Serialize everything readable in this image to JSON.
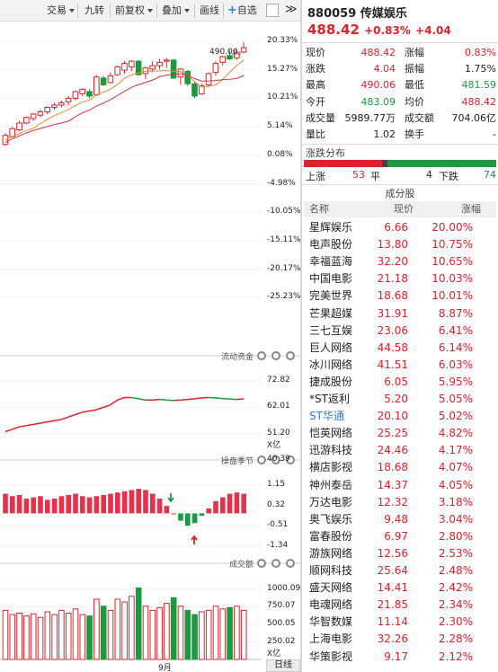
{
  "toolbar": {
    "trade": "交易",
    "nine": "九转",
    "adjust": "前复权",
    "overlay": "叠加",
    "draw": "画线",
    "watch": "自选",
    "more": "≫"
  },
  "kline": {
    "y_labels": [
      "20.33%",
      "15.27%",
      "10.21%",
      "5.14%",
      "0.08%",
      "-4.98%",
      "-10.05%",
      "-15.11%",
      "-20.17%",
      "-25.23%"
    ],
    "peak_label": "490.06",
    "candles": [
      {
        "o": 2.0,
        "c": 3.6,
        "h": 4.0,
        "l": 1.8
      },
      {
        "o": 3.4,
        "c": 4.8,
        "h": 5.1,
        "l": 3.2
      },
      {
        "o": 4.6,
        "c": 5.8,
        "h": 6.2,
        "l": 4.4
      },
      {
        "o": 5.8,
        "c": 6.8,
        "h": 7.0,
        "l": 5.6
      },
      {
        "o": 6.6,
        "c": 7.4,
        "h": 7.6,
        "l": 6.2
      },
      {
        "o": 7.2,
        "c": 7.8,
        "h": 8.2,
        "l": 6.8
      },
      {
        "o": 7.8,
        "c": 8.6,
        "h": 8.8,
        "l": 7.4
      },
      {
        "o": 8.6,
        "c": 9.0,
        "h": 9.4,
        "l": 8.2
      },
      {
        "o": 9.0,
        "c": 9.4,
        "h": 9.8,
        "l": 8.6
      },
      {
        "o": 9.6,
        "c": 10.2,
        "h": 10.6,
        "l": 9.0
      },
      {
        "o": 10.2,
        "c": 11.4,
        "h": 11.6,
        "l": 9.8
      },
      {
        "o": 11.0,
        "c": 11.8,
        "h": 12.0,
        "l": 10.6
      },
      {
        "o": 11.4,
        "c": 10.6,
        "h": 11.8,
        "l": 10.2
      },
      {
        "o": 10.8,
        "c": 14.0,
        "h": 14.4,
        "l": 10.6
      },
      {
        "o": 13.8,
        "c": 12.6,
        "h": 14.2,
        "l": 12.4
      },
      {
        "o": 13.0,
        "c": 14.2,
        "h": 14.8,
        "l": 12.8
      },
      {
        "o": 14.4,
        "c": 15.8,
        "h": 16.0,
        "l": 14.2
      },
      {
        "o": 15.2,
        "c": 16.4,
        "h": 16.8,
        "l": 14.6
      },
      {
        "o": 15.8,
        "c": 16.8,
        "h": 17.0,
        "l": 15.0
      },
      {
        "o": 16.8,
        "c": 14.4,
        "h": 17.0,
        "l": 14.2
      },
      {
        "o": 14.6,
        "c": 15.6,
        "h": 15.8,
        "l": 13.6
      },
      {
        "o": 15.4,
        "c": 16.0,
        "h": 16.8,
        "l": 14.8
      },
      {
        "o": 16.0,
        "c": 16.6,
        "h": 17.2,
        "l": 15.4
      },
      {
        "o": 16.8,
        "c": 17.0,
        "h": 17.4,
        "l": 15.6
      },
      {
        "o": 17.0,
        "c": 13.8,
        "h": 17.2,
        "l": 13.6
      },
      {
        "o": 14.0,
        "c": 15.4,
        "h": 15.6,
        "l": 12.6
      },
      {
        "o": 15.0,
        "c": 12.8,
        "h": 15.2,
        "l": 12.4
      },
      {
        "o": 12.8,
        "c": 10.6,
        "h": 13.2,
        "l": 10.2
      },
      {
        "o": 11.0,
        "c": 12.4,
        "h": 12.8,
        "l": 10.8
      },
      {
        "o": 12.6,
        "c": 14.6,
        "h": 14.8,
        "l": 12.2
      },
      {
        "o": 14.8,
        "c": 16.4,
        "h": 16.8,
        "l": 14.2
      },
      {
        "o": 16.6,
        "c": 17.6,
        "h": 17.8,
        "l": 16.0
      },
      {
        "o": 17.8,
        "c": 17.2,
        "h": 18.8,
        "l": 17.0
      },
      {
        "o": 17.4,
        "c": 18.4,
        "h": 19.0,
        "l": 17.0
      },
      {
        "o": 18.4,
        "c": 19.2,
        "h": 20.2,
        "l": 18.2
      }
    ]
  },
  "flow": {
    "title": "流动资金",
    "y_labels": [
      "72.82",
      "62.01",
      "51.20",
      "40.39"
    ],
    "unit": "X亿",
    "values": [
      52,
      53,
      54,
      54.5,
      55,
      55.5,
      56,
      56.5,
      57,
      58,
      59,
      60,
      60.5,
      61,
      62,
      63,
      65,
      66,
      66,
      65.5,
      65,
      65,
      65.2,
      65,
      64.8,
      65,
      65.2,
      65.5,
      65.8,
      66,
      65.8,
      65.6,
      65.4,
      65.2,
      65.5
    ]
  },
  "season": {
    "title": "操盘季节",
    "y_labels": [
      "1.15",
      "0.32",
      "-0.51",
      "-1.34"
    ],
    "values": [
      0.8,
      0.7,
      0.75,
      0.6,
      0.65,
      0.7,
      0.55,
      0.6,
      0.7,
      0.75,
      0.8,
      0.7,
      0.65,
      0.7,
      0.75,
      0.8,
      0.85,
      0.9,
      0.95,
      1.0,
      0.95,
      0.8,
      0.6,
      0.3,
      0.0,
      -0.3,
      -0.5,
      -0.4,
      -0.1,
      0.2,
      0.5,
      0.65,
      0.8,
      0.85,
      0.8
    ]
  },
  "volume": {
    "title": "成交额",
    "y_labels": [
      "1000.09",
      "750.07",
      "500.05",
      "250.02"
    ],
    "unit": "X亿",
    "values": [
      700,
      640,
      660,
      620,
      650,
      600,
      680,
      640,
      700,
      660,
      720,
      640,
      620,
      860,
      760,
      700,
      860,
      820,
      900,
      1020,
      760,
      700,
      740,
      800,
      880,
      760,
      700,
      640,
      680,
      700,
      760,
      720,
      740,
      760,
      700
    ],
    "xlabel_month": "9月"
  },
  "bottom": {
    "period": "日线"
  },
  "stock": {
    "code": "880059",
    "name": "传媒娱乐",
    "price": "488.42",
    "change_pct": "+0.83%",
    "change": "+4.04"
  },
  "quote": [
    {
      "l1": "现价",
      "v1": "488.42",
      "c1": "red",
      "l2": "涨幅",
      "v2": "0.83%",
      "c2": "red"
    },
    {
      "l1": "涨跌",
      "v1": "4.04",
      "c1": "red",
      "l2": "振幅",
      "v2": "1.75%",
      "c2": "dark"
    },
    {
      "l1": "最高",
      "v1": "490.06",
      "c1": "red",
      "l2": "最低",
      "v2": "481.59",
      "c2": "green"
    },
    {
      "l1": "今开",
      "v1": "483.09",
      "c1": "green",
      "l2": "均价",
      "v2": "488.42",
      "c2": "red"
    },
    {
      "l1": "成交量",
      "v1": "5989.77万",
      "c1": "dark",
      "l2": "成交额",
      "v2": "704.06亿",
      "c2": "dark"
    },
    {
      "l1": "量比",
      "v1": "1.02",
      "c1": "dark",
      "l2": "换手",
      "v2": "-",
      "c2": "dark"
    }
  ],
  "breadth": {
    "title": "涨跌分布",
    "up_label": "上涨",
    "up": "53",
    "flat_label": "平",
    "flat": "4",
    "down_label": "下跌",
    "down": "74",
    "up_n": 53,
    "flat_n": 4,
    "down_n": 74
  },
  "constituents": {
    "title": "成分股",
    "headers": [
      "名称",
      "现价",
      "涨幅"
    ],
    "rows": [
      {
        "name": "星辉娱乐",
        "price": "6.66",
        "pct": "20.00%"
      },
      {
        "name": "电声股份",
        "price": "13.80",
        "pct": "10.75%"
      },
      {
        "name": "幸福蓝海",
        "price": "32.20",
        "pct": "10.65%"
      },
      {
        "name": "中国电影",
        "price": "21.18",
        "pct": "10.03%"
      },
      {
        "name": "完美世界",
        "price": "18.68",
        "pct": "10.01%"
      },
      {
        "name": "芒果超媒",
        "price": "31.91",
        "pct": "8.87%"
      },
      {
        "name": "三七互娱",
        "price": "23.06",
        "pct": "6.41%"
      },
      {
        "name": "巨人网络",
        "price": "44.58",
        "pct": "6.14%"
      },
      {
        "name": "冰川网络",
        "price": "41.51",
        "pct": "6.03%"
      },
      {
        "name": "捷成股份",
        "price": "6.05",
        "pct": "5.95%"
      },
      {
        "name": "*ST返利",
        "price": "5.20",
        "pct": "5.05%"
      },
      {
        "name": "ST华通",
        "price": "20.10",
        "pct": "5.02%",
        "special": true
      },
      {
        "name": "恺英网络",
        "price": "25.25",
        "pct": "4.82%"
      },
      {
        "name": "迅游科技",
        "price": "24.46",
        "pct": "4.17%"
      },
      {
        "name": "横店影视",
        "price": "18.68",
        "pct": "4.07%"
      },
      {
        "name": "神州泰岳",
        "price": "14.37",
        "pct": "4.05%"
      },
      {
        "name": "万达电影",
        "price": "12.32",
        "pct": "3.18%"
      },
      {
        "name": "奥飞娱乐",
        "price": "9.48",
        "pct": "3.04%"
      },
      {
        "name": "富春股份",
        "price": "6.97",
        "pct": "2.80%"
      },
      {
        "name": "游族网络",
        "price": "12.56",
        "pct": "2.53%"
      },
      {
        "name": "顺网科技",
        "price": "25.64",
        "pct": "2.48%"
      },
      {
        "name": "盛天网络",
        "price": "14.41",
        "pct": "2.42%"
      },
      {
        "name": "电魂网络",
        "price": "21.85",
        "pct": "2.34%"
      },
      {
        "name": "华智数媒",
        "price": "11.14",
        "pct": "2.30%"
      },
      {
        "name": "上海电影",
        "price": "32.26",
        "pct": "2.28%"
      },
      {
        "name": "华策影视",
        "price": "9.17",
        "pct": "2.12%"
      }
    ]
  },
  "colors": {
    "up": "#e0212b",
    "down": "#1a9b40",
    "special": "#2f7de1"
  }
}
